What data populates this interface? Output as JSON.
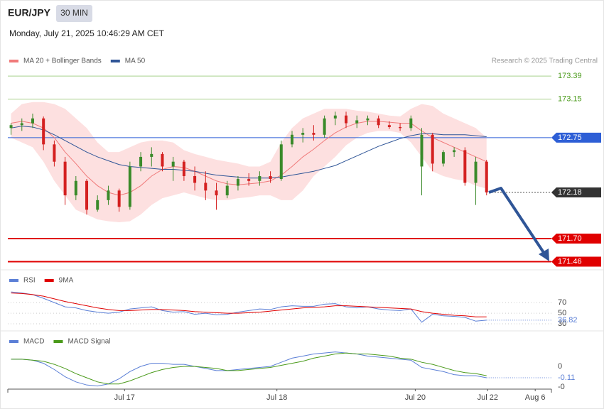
{
  "header": {
    "symbol": "EUR/JPY",
    "timeframe": "30 MIN",
    "datetime": "Monday, July 21, 2025 10:46:29 AM CET"
  },
  "chart_data": [
    {
      "type": "candlestick",
      "source": "Research © 2025 Trading Central",
      "ylim": [
        171.39,
        173.48
      ],
      "up_color": "#3a8a2a",
      "down_color": "#d42020",
      "open": [
        172.85,
        172.88,
        172.9,
        172.95,
        172.68,
        172.5,
        172.15,
        172.3,
        172.0,
        172.1,
        172.2,
        172.03,
        172.45,
        172.55,
        172.58,
        172.45,
        172.5,
        172.35,
        172.28,
        172.2,
        172.15,
        172.25,
        172.32,
        172.3,
        172.35,
        172.32,
        172.68,
        172.78,
        172.8,
        172.78,
        172.95,
        172.98,
        172.9,
        172.93,
        172.95,
        172.88,
        172.86,
        172.85,
        172.45,
        172.78,
        172.48,
        172.6,
        172.62,
        172.28,
        172.5
      ],
      "high": [
        172.9,
        172.95,
        173.0,
        172.97,
        172.72,
        172.55,
        172.35,
        172.32,
        172.15,
        172.25,
        172.22,
        172.5,
        172.6,
        172.65,
        172.6,
        172.55,
        172.52,
        172.45,
        172.4,
        172.28,
        172.3,
        172.35,
        172.38,
        172.4,
        172.4,
        172.72,
        172.82,
        172.85,
        172.88,
        172.98,
        173.02,
        173.02,
        172.98,
        172.98,
        172.98,
        172.92,
        172.9,
        172.98,
        172.85,
        172.8,
        172.62,
        172.65,
        172.65,
        172.55,
        172.52
      ],
      "low": [
        172.78,
        172.82,
        172.85,
        172.62,
        172.45,
        172.05,
        172.1,
        171.95,
        171.98,
        172.05,
        171.98,
        172.0,
        172.4,
        172.45,
        172.4,
        172.3,
        172.3,
        172.2,
        172.1,
        172.0,
        172.12,
        172.2,
        172.25,
        172.25,
        172.28,
        172.3,
        172.65,
        172.7,
        172.72,
        172.75,
        172.88,
        172.85,
        172.85,
        172.88,
        172.85,
        172.84,
        172.82,
        172.82,
        172.15,
        172.4,
        172.45,
        172.55,
        172.25,
        172.05,
        172.15
      ],
      "close": [
        172.88,
        172.9,
        172.95,
        172.68,
        172.5,
        172.15,
        172.3,
        172.0,
        172.1,
        172.2,
        172.03,
        172.45,
        172.55,
        172.58,
        172.45,
        172.5,
        172.35,
        172.28,
        172.2,
        172.15,
        172.25,
        172.32,
        172.3,
        172.35,
        172.32,
        172.68,
        172.78,
        172.8,
        172.78,
        172.95,
        172.98,
        172.9,
        172.93,
        172.95,
        172.88,
        172.86,
        172.85,
        172.95,
        172.78,
        172.48,
        172.6,
        172.62,
        172.28,
        172.5,
        172.18
      ],
      "series": [
        {
          "name": "MA 20 + Bollinger Bands",
          "color": "#f07a7a",
          "band_color": "#fde0e0",
          "values": [
            172.9,
            172.92,
            172.9,
            172.85,
            172.75,
            172.6,
            172.48,
            172.35,
            172.25,
            172.18,
            172.15,
            172.18,
            172.25,
            172.35,
            172.42,
            172.45,
            172.44,
            172.4,
            172.35,
            172.3,
            172.27,
            172.26,
            172.27,
            172.28,
            172.3,
            172.36,
            172.45,
            172.55,
            172.63,
            172.72,
            172.8,
            172.86,
            172.9,
            172.92,
            172.92,
            172.91,
            172.9,
            172.9,
            172.82,
            172.75,
            172.7,
            172.65,
            172.6,
            172.55,
            172.5
          ],
          "upper": [
            173.0,
            173.1,
            173.12,
            173.12,
            173.1,
            173.05,
            172.95,
            172.85,
            172.7,
            172.6,
            172.6,
            172.65,
            172.7,
            172.72,
            172.72,
            172.7,
            172.62,
            172.58,
            172.55,
            172.52,
            172.5,
            172.48,
            172.45,
            172.45,
            172.5,
            172.7,
            172.85,
            172.95,
            173.0,
            173.05,
            173.05,
            173.05,
            173.03,
            173.02,
            173.0,
            172.98,
            172.97,
            173.05,
            173.1,
            173.08,
            173.0,
            172.95,
            172.9,
            172.85,
            172.75
          ],
          "lower": [
            172.75,
            172.7,
            172.65,
            172.5,
            172.3,
            172.15,
            172.0,
            171.95,
            171.9,
            171.88,
            171.87,
            171.88,
            171.95,
            172.05,
            172.12,
            172.15,
            172.18,
            172.15,
            172.12,
            172.1,
            172.1,
            172.12,
            172.13,
            172.15,
            172.15,
            172.1,
            172.1,
            172.2,
            172.35,
            172.45,
            172.55,
            172.67,
            172.75,
            172.8,
            172.82,
            172.82,
            172.8,
            172.7,
            172.55,
            172.4,
            172.35,
            172.32,
            172.3,
            172.25,
            172.22
          ]
        },
        {
          "name": "MA 50",
          "color": "#2f5597",
          "values": [
            172.85,
            172.87,
            172.86,
            172.83,
            172.78,
            172.72,
            172.66,
            172.6,
            172.55,
            172.51,
            172.47,
            172.45,
            172.44,
            172.43,
            172.42,
            172.42,
            172.41,
            172.4,
            172.38,
            172.36,
            172.35,
            172.34,
            172.33,
            172.33,
            172.33,
            172.34,
            172.36,
            172.38,
            172.4,
            172.43,
            172.46,
            172.51,
            172.56,
            172.61,
            172.66,
            172.7,
            172.74,
            172.77,
            172.79,
            172.79,
            172.78,
            172.78,
            172.78,
            172.77,
            172.76
          ]
        }
      ],
      "levels": [
        {
          "value": 173.39,
          "color": "#a8d08d",
          "text_color": "#4a9a1a"
        },
        {
          "value": 173.15,
          "color": "#a8d08d",
          "text_color": "#4a9a1a"
        },
        {
          "value": 172.75,
          "color": "#2e5fd6",
          "box": "#2e5fd6"
        },
        {
          "value": 172.18,
          "color": "#555555",
          "box": "#333333",
          "dotted": true
        },
        {
          "value": 171.7,
          "label": "171.70",
          "color": "#e00000",
          "box": "#e00000"
        },
        {
          "value": 171.46,
          "color": "#e00000",
          "box": "#e00000"
        }
      ]
    },
    {
      "type": "line",
      "ylim": [
        18,
        129
      ],
      "yticks": [
        70,
        50,
        30
      ],
      "series": [
        {
          "name": "RSI",
          "color": "#5b7fd6",
          "values": [
            90,
            88,
            85,
            78,
            70,
            62,
            60,
            55,
            52,
            50,
            52,
            58,
            60,
            62,
            55,
            52,
            53,
            48,
            50,
            47,
            48,
            52,
            55,
            58,
            57,
            62,
            64,
            63,
            63,
            67,
            68,
            62,
            60,
            62,
            58,
            56,
            55,
            58,
            33,
            48,
            45,
            44,
            42,
            35,
            36.82
          ]
        },
        {
          "name": "9MA",
          "color": "#e00000",
          "values": [
            88,
            87,
            85,
            82,
            77,
            72,
            68,
            64,
            60,
            57,
            55,
            55,
            56,
            57,
            57,
            56,
            55,
            53,
            52,
            51,
            50,
            50,
            51,
            52,
            54,
            56,
            58,
            60,
            61,
            62,
            64,
            64,
            63,
            62,
            61,
            60,
            59,
            58,
            53,
            50,
            48,
            46,
            45,
            43,
            43
          ]
        }
      ]
    },
    {
      "type": "line",
      "ylim": [
        -0.22,
        0.33
      ],
      "yticks": [
        0,
        {
          "value": -0.2,
          "label": "-0"
        }
      ],
      "xlim": [
        -0.3,
        50
      ],
      "xticks": [
        {
          "value": 10.5,
          "label": "Jul 17"
        },
        {
          "value": 24.6,
          "label": "Jul 18"
        },
        {
          "value": 37.4,
          "label": "Jul 20"
        },
        {
          "value": 44.1,
          "label": "Jul 22"
        },
        {
          "value": 48.5,
          "label": "Aug 6"
        }
      ],
      "series": [
        {
          "name": "MACD",
          "color": "#5b7fd6",
          "values": [
            0.07,
            0.07,
            0.06,
            0.03,
            -0.03,
            -0.1,
            -0.15,
            -0.18,
            -0.19,
            -0.17,
            -0.12,
            -0.05,
            0.0,
            0.03,
            0.03,
            0.02,
            0.02,
            0.0,
            -0.02,
            -0.04,
            -0.04,
            -0.03,
            -0.02,
            -0.01,
            0.0,
            0.04,
            0.08,
            0.1,
            0.12,
            0.13,
            0.14,
            0.13,
            0.12,
            0.1,
            0.09,
            0.08,
            0.07,
            0.06,
            -0.01,
            -0.03,
            -0.05,
            -0.08,
            -0.09,
            -0.09,
            -0.11
          ]
        },
        {
          "name": "MACD Signal",
          "color": "#4a9a1a",
          "values": [
            0.07,
            0.07,
            0.06,
            0.05,
            0.02,
            -0.02,
            -0.07,
            -0.11,
            -0.15,
            -0.17,
            -0.17,
            -0.14,
            -0.1,
            -0.06,
            -0.03,
            -0.01,
            0.0,
            0.0,
            -0.01,
            -0.02,
            -0.04,
            -0.04,
            -0.03,
            -0.02,
            -0.01,
            0.01,
            0.03,
            0.05,
            0.08,
            0.1,
            0.12,
            0.13,
            0.12,
            0.12,
            0.11,
            0.1,
            0.08,
            0.07,
            0.04,
            0.02,
            -0.01,
            -0.04,
            -0.06,
            -0.07,
            -0.09
          ]
        }
      ]
    }
  ]
}
